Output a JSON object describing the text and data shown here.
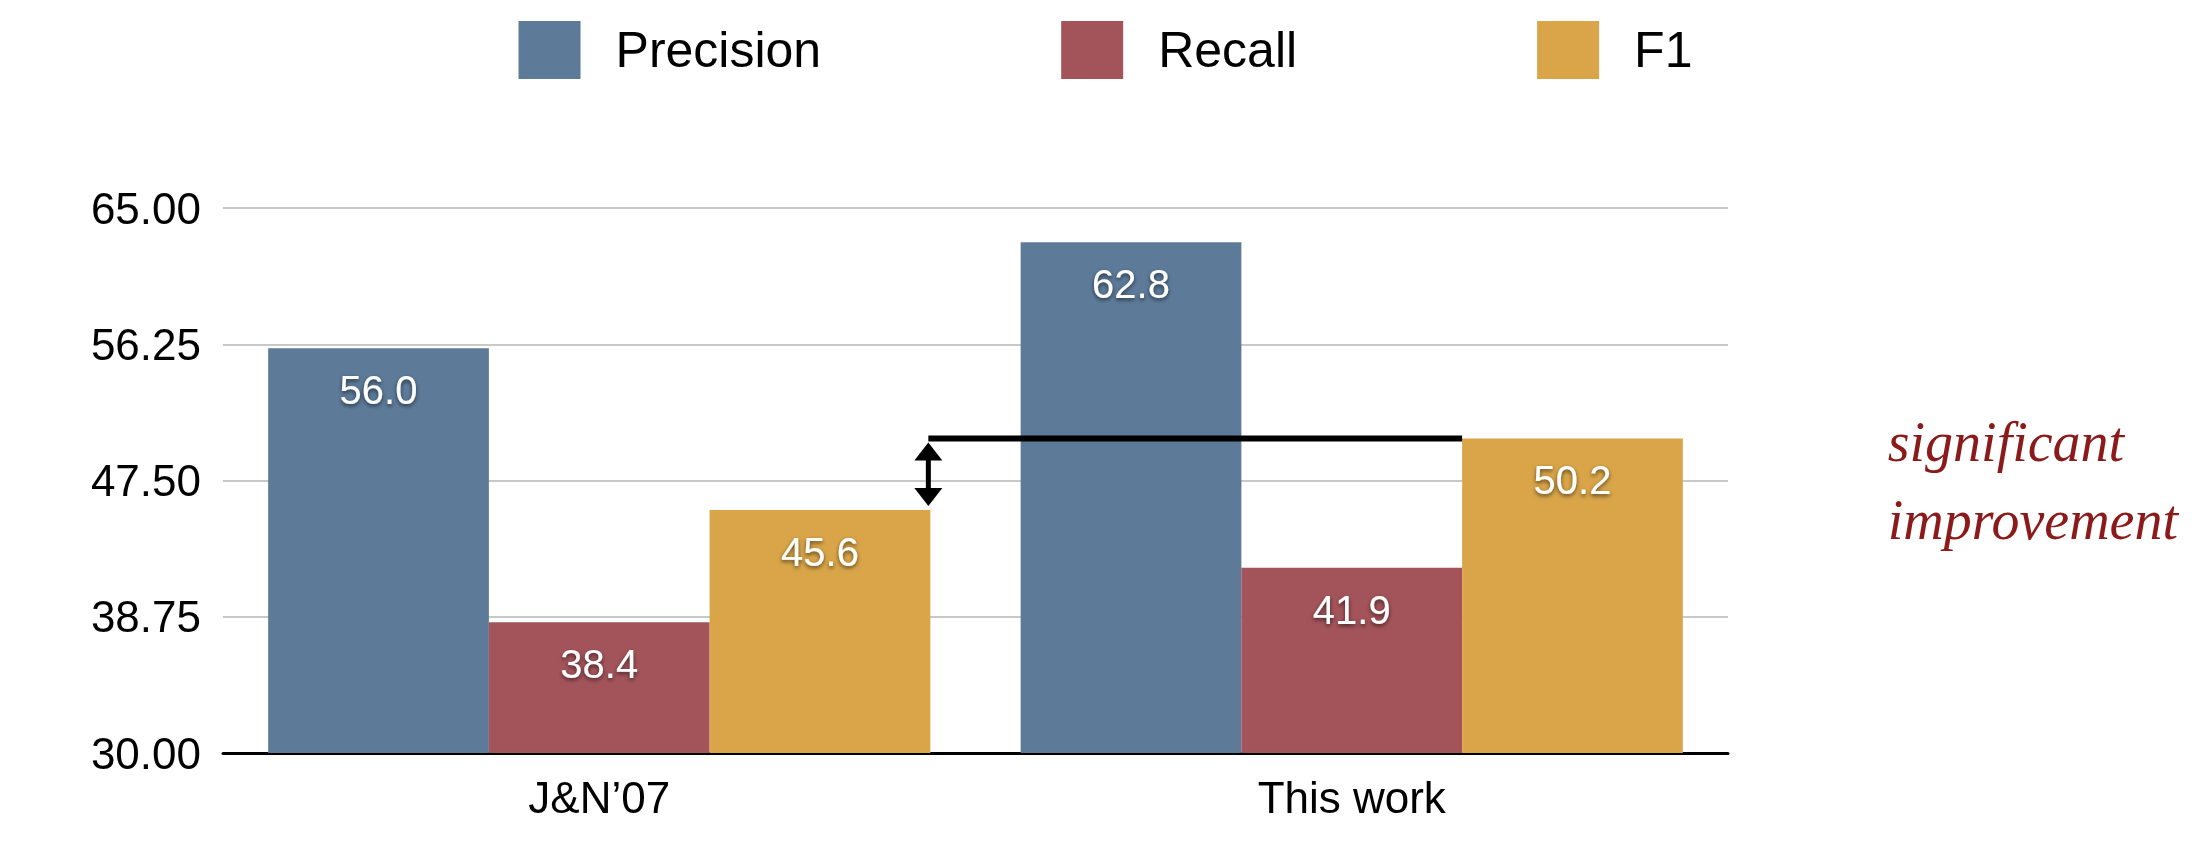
{
  "chart_data": {
    "type": "bar",
    "categories": [
      "J&N’07",
      "This work"
    ],
    "series": [
      {
        "name": "Precision",
        "color": "#5d7b99",
        "values": [
          56.0,
          62.8
        ],
        "value_labels": [
          "56.0",
          "62.8"
        ]
      },
      {
        "name": "Recall",
        "color": "#a3545a",
        "values": [
          38.4,
          41.9
        ],
        "value_labels": [
          "38.4",
          "41.9"
        ]
      },
      {
        "name": "F1",
        "color": "#d9a548",
        "values": [
          45.6,
          50.2
        ],
        "value_labels": [
          "45.6",
          "50.2"
        ]
      }
    ],
    "ylim": [
      30,
      65
    ],
    "yticks": [
      {
        "value": 30,
        "label": "30.00"
      },
      {
        "value": 38.75,
        "label": "38.75"
      },
      {
        "value": 47.5,
        "label": "47.50"
      },
      {
        "value": 56.25,
        "label": "56.25"
      },
      {
        "value": 65,
        "label": "65.00"
      }
    ],
    "grid": "y",
    "legend": "top",
    "annotations": [
      "significant improvement"
    ]
  }
}
